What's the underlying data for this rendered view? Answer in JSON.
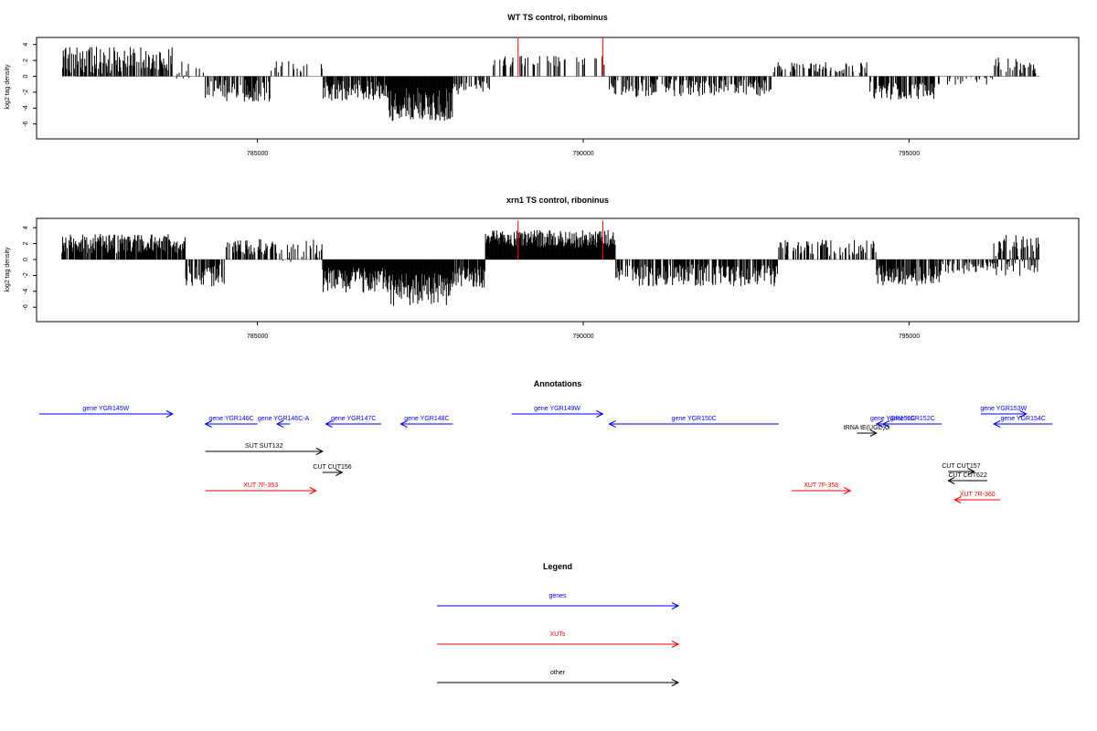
{
  "colors": {
    "genes": "#0000ff",
    "xuts": "#ff0000",
    "other": "#000000",
    "bars": "#000000",
    "markers": "#ff0000",
    "baseline": "#808080"
  },
  "chart_data": [
    {
      "type": "bar",
      "title": "WT TS control, ribominus",
      "xlabel": "",
      "ylabel": "log2 tag density",
      "xlim": [
        782000,
        797200
      ],
      "ylim": [
        -7.5,
        5
      ],
      "xticks": [
        785000,
        790000,
        795000
      ],
      "xtick_labels": [
        "785000",
        "790000",
        "795000"
      ],
      "yticks": [
        4,
        2,
        0,
        -2,
        -4,
        -6
      ],
      "ytick_labels": [
        "4",
        "2",
        "0",
        "-2",
        "-4",
        "-6"
      ],
      "markers": [
        789000,
        790300
      ],
      "profile": [
        {
          "start": 782000,
          "end": 783700,
          "mean": 2.0,
          "spread": 1.7,
          "density": 0.7
        },
        {
          "start": 783700,
          "end": 784200,
          "mean": 0.7,
          "spread": 1.2,
          "density": 0.3
        },
        {
          "start": 784200,
          "end": 785200,
          "mean": -1.8,
          "spread": 1.4,
          "density": 0.6
        },
        {
          "start": 785200,
          "end": 786000,
          "mean": 1.2,
          "spread": 0.8,
          "density": 0.2
        },
        {
          "start": 786000,
          "end": 787000,
          "mean": -1.8,
          "spread": 1.3,
          "density": 0.85
        },
        {
          "start": 787000,
          "end": 788000,
          "mean": -3.6,
          "spread": 2.2,
          "density": 1.0
        },
        {
          "start": 788000,
          "end": 788600,
          "mean": -1.4,
          "spread": 0.9,
          "density": 0.6
        },
        {
          "start": 788600,
          "end": 790400,
          "mean": 1.8,
          "spread": 0.8,
          "density": 0.25
        },
        {
          "start": 790400,
          "end": 792900,
          "mean": -1.5,
          "spread": 1.1,
          "density": 0.55
        },
        {
          "start": 792900,
          "end": 794400,
          "mean": 1.1,
          "spread": 0.7,
          "density": 0.3
        },
        {
          "start": 794400,
          "end": 795400,
          "mean": -1.8,
          "spread": 1.1,
          "density": 0.7
        },
        {
          "start": 795400,
          "end": 796300,
          "mean": -0.6,
          "spread": 0.6,
          "density": 0.2
        },
        {
          "start": 796300,
          "end": 797000,
          "mean": 1.4,
          "spread": 1.0,
          "density": 0.35
        }
      ]
    },
    {
      "type": "bar",
      "title": "xrn1 TS control, riboninus",
      "xlabel": "",
      "ylabel": "log2 tag density",
      "xlim": [
        782000,
        797200
      ],
      "ylim": [
        -7.5,
        5
      ],
      "xticks": [
        785000,
        790000,
        795000
      ],
      "xtick_labels": [
        "785000",
        "790000",
        "795000"
      ],
      "yticks": [
        4,
        2,
        0,
        -2,
        -4,
        -6
      ],
      "ytick_labels": [
        "4",
        "2",
        "0",
        "-2",
        "-4",
        "-6"
      ],
      "markers": [
        789000,
        790300
      ],
      "profile": [
        {
          "start": 782000,
          "end": 783900,
          "mean": 2.0,
          "spread": 1.2,
          "density": 0.85
        },
        {
          "start": 783900,
          "end": 784500,
          "mean": -2.0,
          "spread": 1.5,
          "density": 0.8
        },
        {
          "start": 784500,
          "end": 785300,
          "mean": 1.6,
          "spread": 1.0,
          "density": 0.7
        },
        {
          "start": 785300,
          "end": 786000,
          "mean": 1.0,
          "spread": 1.5,
          "density": 0.4
        },
        {
          "start": 786000,
          "end": 787000,
          "mean": -2.6,
          "spread": 1.6,
          "density": 1.0
        },
        {
          "start": 787000,
          "end": 788000,
          "mean": -3.8,
          "spread": 2.1,
          "density": 1.0
        },
        {
          "start": 788000,
          "end": 788500,
          "mean": -2.2,
          "spread": 1.4,
          "density": 0.9
        },
        {
          "start": 788500,
          "end": 790500,
          "mean": 2.6,
          "spread": 1.1,
          "density": 1.0
        },
        {
          "start": 790500,
          "end": 793000,
          "mean": -2.0,
          "spread": 1.4,
          "density": 0.7
        },
        {
          "start": 793000,
          "end": 794500,
          "mean": 1.5,
          "spread": 1.0,
          "density": 0.4
        },
        {
          "start": 794500,
          "end": 795500,
          "mean": -2.0,
          "spread": 1.3,
          "density": 0.8
        },
        {
          "start": 795500,
          "end": 796300,
          "mean": -1.0,
          "spread": 0.8,
          "density": 0.5
        },
        {
          "start": 796300,
          "end": 797000,
          "mean": 0.5,
          "spread": 2.6,
          "density": 0.95
        }
      ]
    },
    {
      "type": "annotation-track",
      "title": "Annotations",
      "xlim": [
        782000,
        797200
      ],
      "features": [
        {
          "label": "gene YGR145W",
          "class": "genes",
          "start": 781650,
          "end": 783700,
          "strand": "+",
          "row": 0
        },
        {
          "label": "gene YGR146C",
          "class": "genes",
          "start": 784200,
          "end": 785000,
          "strand": "-",
          "row": 1
        },
        {
          "label": "gene YGR146C-A",
          "class": "genes",
          "start": 785300,
          "end": 785500,
          "strand": "-",
          "row": 1
        },
        {
          "label": "gene YGR147C",
          "class": "genes",
          "start": 786050,
          "end": 786900,
          "strand": "-",
          "row": 1
        },
        {
          "label": "gene YGR148C",
          "class": "genes",
          "start": 787200,
          "end": 788000,
          "strand": "-",
          "row": 1
        },
        {
          "label": "gene YGR149W",
          "class": "genes",
          "start": 788900,
          "end": 790300,
          "strand": "+",
          "row": 0
        },
        {
          "label": "gene YGR150C",
          "class": "genes",
          "start": 790400,
          "end": 793000,
          "strand": "-",
          "row": 1
        },
        {
          "label": "gene YGR151C",
          "class": "genes",
          "start": 794500,
          "end": 795000,
          "strand": "-",
          "row": 1
        },
        {
          "label": "gene YGR152C",
          "class": "genes",
          "start": 794600,
          "end": 795500,
          "strand": "-",
          "row": 1
        },
        {
          "label": "gene YGR153W",
          "class": "genes",
          "start": 796100,
          "end": 796800,
          "strand": "+",
          "row": 0
        },
        {
          "label": "gene YGR154C",
          "class": "genes",
          "start": 796300,
          "end": 797200,
          "strand": "-",
          "row": 1
        },
        {
          "label": "tRNA tE(UGC)G",
          "class": "other",
          "start": 794200,
          "end": 794500,
          "strand": "+",
          "row": 2
        },
        {
          "label": "SUT SUT132",
          "class": "other",
          "start": 784200,
          "end": 786000,
          "strand": "+",
          "row": 3
        },
        {
          "label": "CUT CUT156",
          "class": "other",
          "start": 786000,
          "end": 786300,
          "strand": "+",
          "row": 4
        },
        {
          "label": "CUT CUT157",
          "class": "other",
          "start": 795600,
          "end": 796000,
          "strand": "+",
          "row": 5
        },
        {
          "label": "CUT CUT622",
          "class": "other",
          "start": 795600,
          "end": 796200,
          "strand": "-",
          "row": 6
        },
        {
          "label": "XUT 7F-353",
          "class": "xuts",
          "start": 784200,
          "end": 785900,
          "strand": "+",
          "row": 7
        },
        {
          "label": "XUT 7F-358",
          "class": "xuts",
          "start": 793200,
          "end": 794100,
          "strand": "+",
          "row": 7
        },
        {
          "label": "XUT 7R-360",
          "class": "xuts",
          "start": 795700,
          "end": 796400,
          "strand": "-",
          "row": 8
        }
      ]
    },
    {
      "type": "legend",
      "title": "Legend",
      "entries": [
        {
          "label": "genes",
          "class": "genes"
        },
        {
          "label": "XUTs",
          "class": "xuts"
        },
        {
          "label": "other",
          "class": "other"
        }
      ]
    }
  ]
}
